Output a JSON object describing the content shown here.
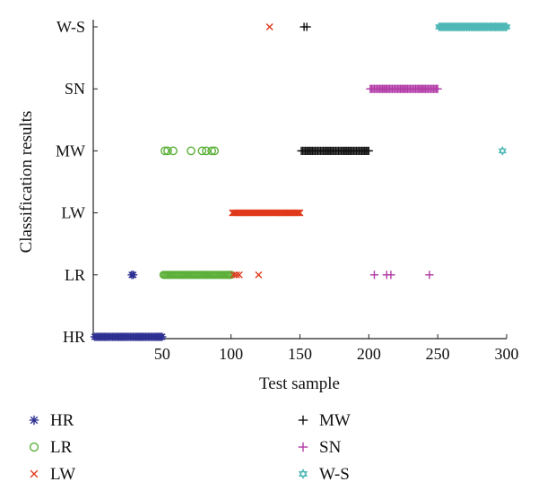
{
  "chart_data": {
    "type": "scatter",
    "xlabel": "Test sample",
    "ylabel": "Classification results",
    "xlim": [
      0,
      300
    ],
    "x_ticks": [
      50,
      100,
      150,
      200,
      250,
      300
    ],
    "categories": [
      "HR",
      "LR",
      "LW",
      "MW",
      "SN",
      "W-S"
    ],
    "legend_position": "bottom",
    "grid": false,
    "series": [
      {
        "name": "HR",
        "marker": "asterisk",
        "color": "#2e3192",
        "points": [
          {
            "range": [
              1,
              50
            ],
            "class": "HR"
          },
          {
            "x": 28,
            "class": "LR"
          },
          {
            "x": 29,
            "class": "LR"
          }
        ]
      },
      {
        "name": "LR",
        "marker": "circle",
        "color": "#5cb03a",
        "points": [
          {
            "x": 52,
            "class": "MW"
          },
          {
            "x": 54,
            "class": "MW"
          },
          {
            "x": 58,
            "class": "MW"
          },
          {
            "x": 71,
            "class": "MW"
          },
          {
            "x": 79,
            "class": "MW"
          },
          {
            "x": 82,
            "class": "MW"
          },
          {
            "x": 86,
            "class": "MW"
          },
          {
            "x": 88,
            "class": "MW"
          },
          {
            "range": [
              51,
              100
            ],
            "class": "LR"
          }
        ]
      },
      {
        "name": "LW",
        "marker": "x",
        "color": "#e0391b",
        "points": [
          {
            "x": 128,
            "class": "W-S"
          },
          {
            "x": 102,
            "class": "LR"
          },
          {
            "x": 104,
            "class": "LR"
          },
          {
            "x": 106,
            "class": "LR"
          },
          {
            "x": 120,
            "class": "LR"
          },
          {
            "range": [
              101,
              150
            ],
            "class": "LW"
          }
        ]
      },
      {
        "name": "MW",
        "marker": "plus",
        "color": "#111111",
        "points": [
          {
            "x": 153,
            "class": "W-S"
          },
          {
            "x": 155,
            "class": "W-S"
          },
          {
            "range": [
              151,
              200
            ],
            "class": "MW"
          }
        ]
      },
      {
        "name": "SN",
        "marker": "plus",
        "color": "#b23aa6",
        "points": [
          {
            "x": 204,
            "class": "LR"
          },
          {
            "x": 213,
            "class": "LR"
          },
          {
            "x": 216,
            "class": "LR"
          },
          {
            "x": 244,
            "class": "LR"
          },
          {
            "range": [
              201,
              250
            ],
            "class": "SN"
          }
        ]
      },
      {
        "name": "W-S",
        "marker": "star",
        "color": "#4fb8b6",
        "points": [
          {
            "x": 297,
            "class": "MW"
          },
          {
            "range": [
              251,
              300
            ],
            "class": "W-S"
          }
        ]
      }
    ]
  }
}
